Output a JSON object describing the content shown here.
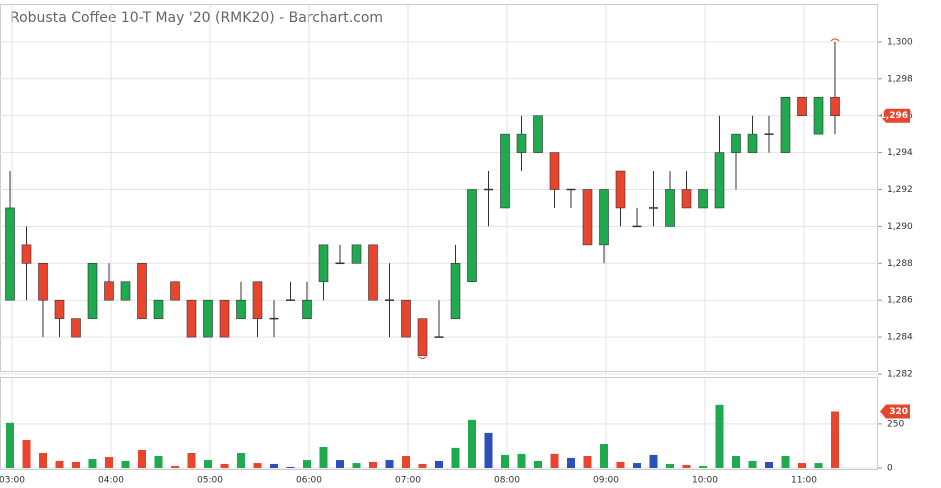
{
  "chart_data": {
    "type": "candlestick",
    "title": "Robusta Coffee 10-T May '20 (RMK20) - Barchart.com",
    "categories": [
      "03:00",
      null,
      null,
      null,
      null,
      null,
      "04:00",
      null,
      null,
      null,
      null,
      null,
      "05:00",
      null,
      null,
      null,
      null,
      null,
      "06:00",
      null,
      null,
      null,
      null,
      null,
      "07:00",
      null,
      null,
      null,
      null,
      null,
      "08:00",
      null,
      null,
      null,
      null,
      null,
      "09:00",
      null,
      null,
      null,
      null,
      null,
      "10:00",
      null,
      null,
      null,
      null,
      null,
      "11:00",
      null,
      null
    ],
    "open": [
      1286,
      1289,
      1288,
      1286,
      1285,
      1285,
      1287,
      1286,
      1288,
      1285,
      1287,
      1286,
      1284,
      1286,
      1285,
      1287,
      1285,
      1286,
      1285,
      1287,
      1288,
      1288,
      1289,
      1286,
      1286,
      1285,
      1284,
      1285,
      1287,
      1292,
      1291,
      1294,
      1294,
      1294,
      1292,
      1292,
      1289,
      1293,
      1290,
      1291,
      1290,
      1292,
      1291,
      1291,
      1294,
      1294,
      1295,
      1294,
      1297,
      1295,
      1297
    ],
    "high": [
      1293,
      1290,
      1288,
      1286,
      1285,
      1288,
      1288,
      1287,
      1288,
      1286,
      1287,
      1286,
      1286,
      1286,
      1287,
      1287,
      1286,
      1287,
      1287,
      1289,
      1289,
      1289,
      1289,
      1288,
      1286,
      1285,
      1286,
      1289,
      1292,
      1293,
      1295,
      1296,
      1296,
      1294,
      1292,
      1292,
      1292,
      1293,
      1291,
      1293,
      1293,
      1293,
      1292,
      1296,
      1295,
      1296,
      1296,
      1297,
      1297,
      1297,
      1300
    ],
    "low": [
      1286,
      1286,
      1284,
      1284,
      1284,
      1285,
      1286,
      1286,
      1285,
      1285,
      1286,
      1284,
      1284,
      1284,
      1285,
      1284,
      1284,
      1286,
      1285,
      1286,
      1288,
      1288,
      1286,
      1284,
      1284,
      1283,
      1284,
      1285,
      1287,
      1290,
      1291,
      1293,
      1294,
      1291,
      1291,
      1289,
      1288,
      1290,
      1290,
      1290,
      1290,
      1291,
      1291,
      1291,
      1292,
      1294,
      1294,
      1294,
      1296,
      1295,
      1295
    ],
    "close": [
      1291,
      1288,
      1286,
      1285,
      1284,
      1288,
      1286,
      1287,
      1285,
      1286,
      1286,
      1284,
      1286,
      1284,
      1286,
      1285,
      1285,
      1286,
      1286,
      1289,
      1288,
      1289,
      1286,
      1286,
      1284,
      1283,
      1284,
      1288,
      1292,
      1292,
      1295,
      1295,
      1296,
      1292,
      1292,
      1289,
      1292,
      1291,
      1290,
      1291,
      1292,
      1291,
      1292,
      1294,
      1295,
      1295,
      1295,
      1297,
      1296,
      1297,
      1296
    ],
    "volume": [
      256,
      159,
      85,
      40,
      34,
      51,
      62,
      40,
      102,
      68,
      11,
      85,
      45,
      23,
      85,
      28,
      23,
      6,
      45,
      119,
      45,
      28,
      34,
      45,
      68,
      23,
      40,
      114,
      273,
      199,
      74,
      80,
      40,
      80,
      57,
      68,
      136,
      34,
      28,
      74,
      23,
      17,
      11,
      358,
      68,
      40,
      34,
      68,
      28,
      28,
      320
    ],
    "up_color": "#1faa4f",
    "down_color": "#e8452e",
    "unchanged_color": "#2b50b8",
    "ylim": [
      1282,
      1302
    ],
    "yticks": [
      {
        "value": 1282,
        "label": "1,282"
      },
      {
        "value": 1284,
        "label": "1,284"
      },
      {
        "value": 1286,
        "label": "1,286"
      },
      {
        "value": 1288,
        "label": "1,288"
      },
      {
        "value": 1290,
        "label": "1,290"
      },
      {
        "value": 1292,
        "label": "1,292"
      },
      {
        "value": 1294,
        "label": "1,294"
      },
      {
        "value": 1296,
        "label": "1,296"
      },
      {
        "value": 1298,
        "label": "1,298"
      },
      {
        "value": 1300,
        "label": "1,300"
      }
    ],
    "y2lim": [
      0,
      510
    ],
    "y2ticks": [
      0,
      250
    ],
    "last_price": {
      "value": 1296,
      "label": "1,296"
    },
    "last_volume": {
      "value": 320,
      "label": "320"
    },
    "grid": true
  }
}
